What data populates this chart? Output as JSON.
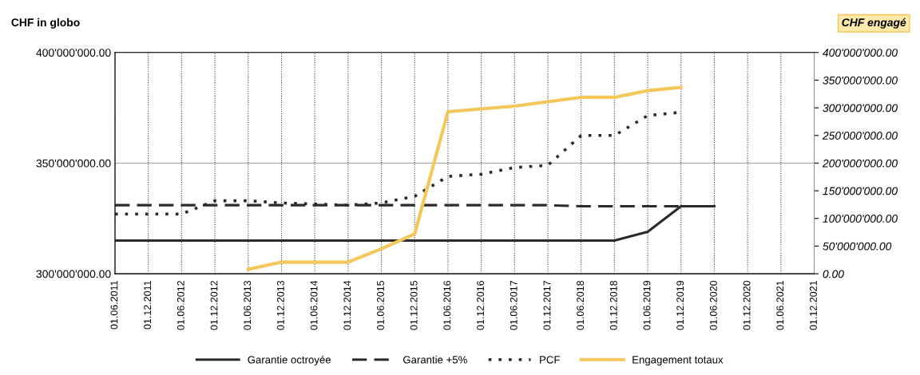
{
  "chart_data": {
    "type": "line",
    "ylabel": "CHF in globo",
    "y2label": "CHF engagé",
    "categories": [
      "01.06.2011",
      "01.12.2011",
      "01.06.2012",
      "01.12.2012",
      "01.06.2013",
      "01.12.2013",
      "01.06.2014",
      "01.12.2014",
      "01.06.2015",
      "01.12.2015",
      "01.06.2016",
      "01.12.2016",
      "01.06.2017",
      "01.12.2017",
      "01.06.2018",
      "01.12.2018",
      "01.06.2019",
      "01.12.2019",
      "01.06.2020",
      "01.12.2020",
      "01.06.2021",
      "01.12.2021"
    ],
    "series": [
      {
        "name": "Garantie octroyée",
        "color": "#2b2b2b",
        "line_style": "solid",
        "values": [
          315000000,
          315000000,
          315000000,
          315000000,
          315000000,
          315000000,
          315000000,
          315000000,
          315000000,
          315000000,
          315000000,
          315000000,
          315000000,
          315000000,
          315000000,
          315000000,
          319000000,
          330500000,
          330500000,
          null,
          null,
          null
        ]
      },
      {
        "name": "Garantie +5%",
        "color": "#2b2b2b",
        "line_style": "dashed",
        "values": [
          331000000,
          331000000,
          331000000,
          331000000,
          331000000,
          331000000,
          331000000,
          331000000,
          331000000,
          331000000,
          331000000,
          331000000,
          331000000,
          331000000,
          330500000,
          330500000,
          330500000,
          330500000,
          null,
          null,
          null,
          null
        ]
      },
      {
        "name": "PCF",
        "color": "#2b2b2b",
        "line_style": "dotted",
        "values": [
          327000000,
          327000000,
          327000000,
          333000000,
          333000000,
          332000000,
          331500000,
          331000000,
          332000000,
          335000000,
          344000000,
          345000000,
          348000000,
          349000000,
          362500000,
          362500000,
          371500000,
          373000000,
          null,
          null,
          null,
          null
        ]
      },
      {
        "name": "Engagement totaux",
        "color": "#f5c65a",
        "line_style": "solid",
        "axis": "y2",
        "values": [
          null,
          null,
          null,
          null,
          8000000,
          21000000,
          21000000,
          21000000,
          45000000,
          72000000,
          293000000,
          298000000,
          303000000,
          311000000,
          319000000,
          319000000,
          331000000,
          337000000,
          null,
          null,
          null,
          null
        ]
      }
    ],
    "ylim": [
      300000000,
      400000000
    ],
    "yticks": [
      {
        "value": 300000000,
        "label": "300'000'000.00"
      },
      {
        "value": 350000000,
        "label": "350'000'000.00"
      },
      {
        "value": 400000000,
        "label": "400'000'000.00"
      }
    ],
    "y2lim": [
      0,
      400000000
    ],
    "y2ticks": [
      {
        "value": 0,
        "label": "0.00"
      },
      {
        "value": 50000000,
        "label": "50'000'000.00"
      },
      {
        "value": 100000000,
        "label": "100'000'000.00"
      },
      {
        "value": 150000000,
        "label": "150'000'000.00"
      },
      {
        "value": 200000000,
        "label": "200'000'000.00"
      },
      {
        "value": 250000000,
        "label": "250'000'000.00"
      },
      {
        "value": 300000000,
        "label": "300'000'000.00"
      },
      {
        "value": 350000000,
        "label": "350'000'000.00"
      },
      {
        "value": 400000000,
        "label": "400'000'000.00"
      }
    ],
    "ref_lines": [
      {
        "axis": "y",
        "value": 350000000,
        "color": "#8a8a8a",
        "line_style": "solid"
      }
    ],
    "grid": "x",
    "legend": "bottom",
    "marker": "none"
  }
}
